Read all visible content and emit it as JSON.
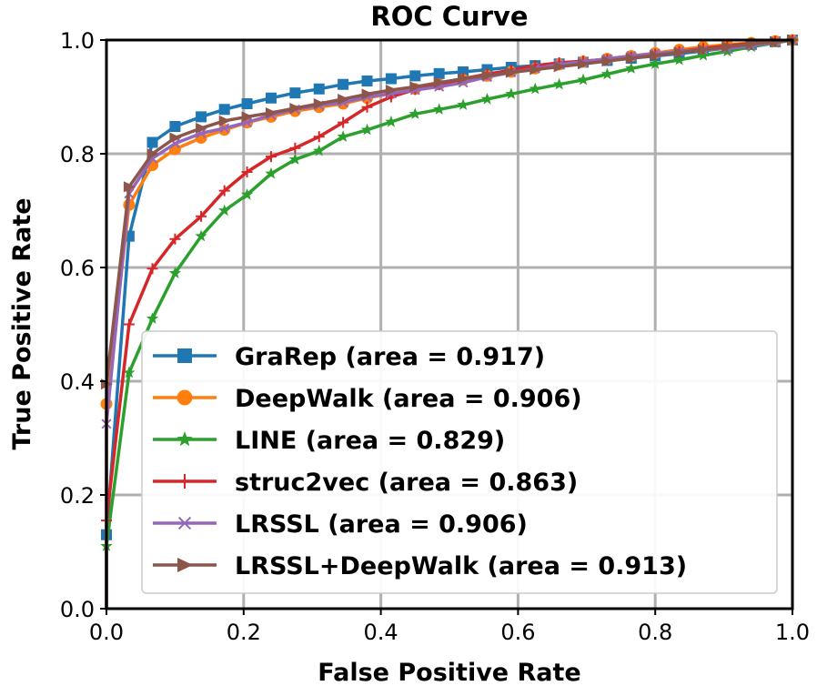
{
  "chart_data": {
    "type": "line",
    "title": "ROC Curve",
    "xlabel": "False Positive Rate",
    "ylabel": "True Positive Rate",
    "xlim": [
      0.0,
      1.0
    ],
    "ylim": [
      0.0,
      1.0
    ],
    "xticks": [
      "0.0",
      "0.2",
      "0.4",
      "0.6",
      "0.8",
      "1.0"
    ],
    "yticks": [
      "0.0",
      "0.2",
      "0.4",
      "0.6",
      "0.8",
      "1.0"
    ],
    "grid": true,
    "legend_position": "lower-right",
    "series": [
      {
        "name": "GraRep (area = 0.917)",
        "color": "#1f77b4",
        "marker": "square",
        "x": [
          0.0,
          0.0,
          0.033,
          0.067,
          0.1,
          0.138,
          0.172,
          0.205,
          0.24,
          0.275,
          0.31,
          0.345,
          0.38,
          0.415,
          0.45,
          0.485,
          0.52,
          0.555,
          0.59,
          0.625,
          0.66,
          0.695,
          0.73,
          0.765,
          0.8,
          0.835,
          0.87,
          0.905,
          0.94,
          0.975,
          1.0
        ],
        "y": [
          0.0,
          0.13,
          0.655,
          0.82,
          0.848,
          0.865,
          0.878,
          0.888,
          0.898,
          0.907,
          0.914,
          0.922,
          0.928,
          0.932,
          0.937,
          0.941,
          0.944,
          0.948,
          0.952,
          0.955,
          0.958,
          0.961,
          0.964,
          0.968,
          0.972,
          0.976,
          0.981,
          0.986,
          0.992,
          0.997,
          1.0
        ]
      },
      {
        "name": "DeepWalk (area = 0.906)",
        "color": "#ff7f0e",
        "marker": "circle",
        "x": [
          0.0,
          0.0,
          0.033,
          0.067,
          0.1,
          0.138,
          0.172,
          0.205,
          0.24,
          0.275,
          0.31,
          0.345,
          0.38,
          0.415,
          0.45,
          0.485,
          0.52,
          0.555,
          0.59,
          0.625,
          0.66,
          0.695,
          0.73,
          0.765,
          0.8,
          0.835,
          0.87,
          0.905,
          0.94,
          0.975,
          1.0
        ],
        "y": [
          0.0,
          0.36,
          0.71,
          0.78,
          0.808,
          0.828,
          0.842,
          0.855,
          0.865,
          0.875,
          0.882,
          0.888,
          0.898,
          0.906,
          0.914,
          0.922,
          0.93,
          0.937,
          0.944,
          0.95,
          0.957,
          0.962,
          0.967,
          0.972,
          0.977,
          0.983,
          0.988,
          0.992,
          0.995,
          0.998,
          1.0
        ]
      },
      {
        "name": "LINE (area = 0.829)",
        "color": "#2ca02c",
        "marker": "star",
        "x": [
          0.0,
          0.0,
          0.033,
          0.067,
          0.1,
          0.138,
          0.172,
          0.205,
          0.24,
          0.275,
          0.31,
          0.345,
          0.38,
          0.415,
          0.45,
          0.485,
          0.52,
          0.555,
          0.59,
          0.625,
          0.66,
          0.695,
          0.73,
          0.765,
          0.8,
          0.835,
          0.87,
          0.905,
          0.94,
          0.975,
          1.0
        ],
        "y": [
          0.0,
          0.11,
          0.415,
          0.51,
          0.59,
          0.655,
          0.7,
          0.728,
          0.765,
          0.79,
          0.805,
          0.83,
          0.842,
          0.856,
          0.87,
          0.878,
          0.886,
          0.896,
          0.905,
          0.914,
          0.922,
          0.93,
          0.94,
          0.95,
          0.958,
          0.965,
          0.973,
          0.98,
          0.988,
          0.995,
          1.0
        ]
      },
      {
        "name": "struc2vec (area = 0.863)",
        "color": "#d62728",
        "marker": "plus",
        "x": [
          0.0,
          0.0,
          0.033,
          0.067,
          0.1,
          0.138,
          0.172,
          0.205,
          0.24,
          0.275,
          0.31,
          0.345,
          0.38,
          0.415,
          0.45,
          0.485,
          0.52,
          0.555,
          0.59,
          0.625,
          0.66,
          0.695,
          0.73,
          0.765,
          0.8,
          0.835,
          0.87,
          0.905,
          0.94,
          0.975,
          1.0
        ],
        "y": [
          0.0,
          0.155,
          0.5,
          0.598,
          0.65,
          0.69,
          0.735,
          0.768,
          0.795,
          0.81,
          0.83,
          0.855,
          0.882,
          0.9,
          0.913,
          0.922,
          0.932,
          0.94,
          0.947,
          0.955,
          0.96,
          0.963,
          0.966,
          0.97,
          0.975,
          0.98,
          0.985,
          0.99,
          0.994,
          0.998,
          1.0
        ]
      },
      {
        "name": "LRSSL (area = 0.906)",
        "color": "#9467bd",
        "marker": "x",
        "x": [
          0.0,
          0.0,
          0.033,
          0.067,
          0.1,
          0.138,
          0.172,
          0.205,
          0.24,
          0.275,
          0.31,
          0.345,
          0.38,
          0.415,
          0.45,
          0.485,
          0.52,
          0.555,
          0.59,
          0.625,
          0.66,
          0.695,
          0.73,
          0.765,
          0.8,
          0.835,
          0.87,
          0.905,
          0.94,
          0.975,
          1.0
        ],
        "y": [
          0.0,
          0.325,
          0.73,
          0.792,
          0.818,
          0.836,
          0.845,
          0.855,
          0.868,
          0.878,
          0.885,
          0.89,
          0.9,
          0.906,
          0.912,
          0.918,
          0.925,
          0.935,
          0.943,
          0.95,
          0.957,
          0.962,
          0.967,
          0.972,
          0.976,
          0.98,
          0.983,
          0.985,
          0.99,
          0.996,
          1.0
        ]
      },
      {
        "name": "LRSSL+DeepWalk (area = 0.913)",
        "color": "#8c564b",
        "marker": "triangle-right",
        "x": [
          0.0,
          0.0,
          0.033,
          0.067,
          0.1,
          0.138,
          0.172,
          0.205,
          0.24,
          0.275,
          0.31,
          0.345,
          0.38,
          0.415,
          0.45,
          0.485,
          0.52,
          0.555,
          0.59,
          0.625,
          0.66,
          0.695,
          0.73,
          0.765,
          0.8,
          0.835,
          0.87,
          0.905,
          0.94,
          0.975,
          1.0
        ],
        "y": [
          0.0,
          0.395,
          0.742,
          0.8,
          0.828,
          0.845,
          0.858,
          0.865,
          0.872,
          0.88,
          0.888,
          0.896,
          0.905,
          0.912,
          0.918,
          0.925,
          0.932,
          0.938,
          0.943,
          0.948,
          0.953,
          0.958,
          0.963,
          0.968,
          0.973,
          0.978,
          0.983,
          0.988,
          0.993,
          0.997,
          1.0
        ]
      }
    ]
  }
}
